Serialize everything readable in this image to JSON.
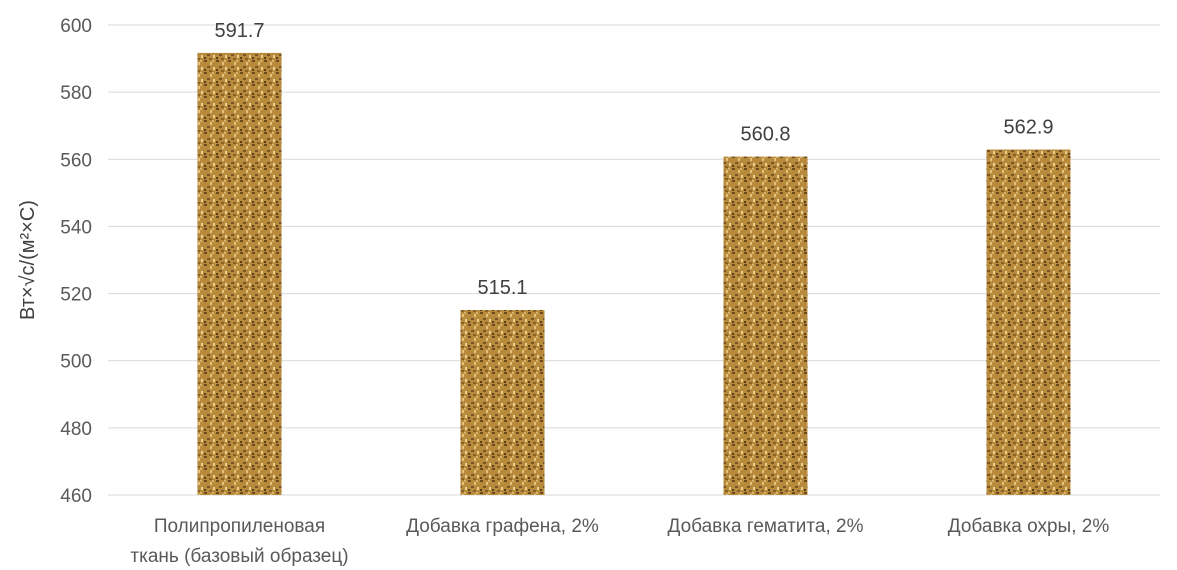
{
  "chart_data": {
    "type": "bar",
    "ylabel": "Вт×√с/(м²×С)",
    "categories": [
      [
        "Полипропиленовая",
        "ткань (базовый образец)"
      ],
      [
        "Добавка графена, 2%"
      ],
      [
        "Добавка гематита, 2%"
      ],
      [
        "Добавка охры, 2%"
      ]
    ],
    "values": [
      591.7,
      515.1,
      560.8,
      562.9
    ],
    "value_labels": [
      "591.7",
      "515.1",
      "560.8",
      "562.9"
    ],
    "ylim": [
      460,
      600
    ],
    "yticks": [
      460,
      480,
      500,
      520,
      540,
      560,
      580,
      600
    ],
    "grid": true,
    "bar_fill": "#b88a3c",
    "bar_pattern_dark": "#6b4a1e",
    "bar_pattern_light": "#e3c27e"
  }
}
